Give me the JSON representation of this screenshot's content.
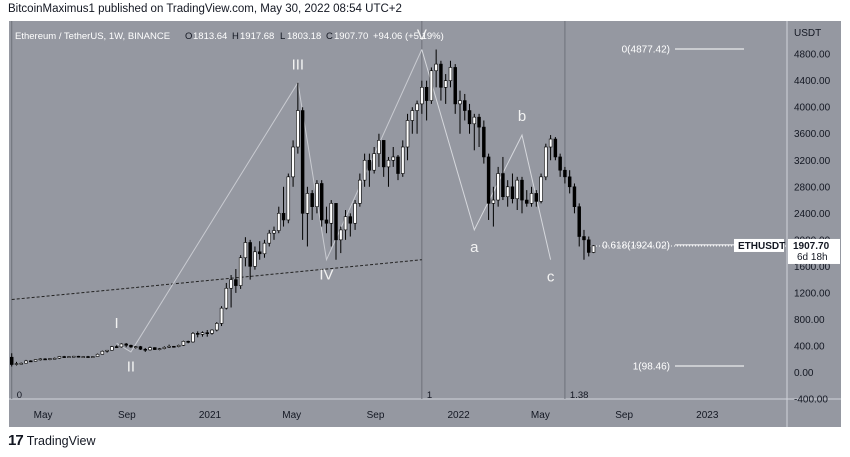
{
  "header": {
    "text": "BitcoinMaximus1 published on TradingView.com, May 30, 2022 08:54 UTC+2"
  },
  "footer": {
    "logo": "17",
    "brand": "TradingView"
  },
  "colors": {
    "plot_bg": "#9598a1",
    "candle_up": "#ffffff",
    "candle_down": "#000000",
    "fib_line": "#ffffff",
    "label_text": "#f2f2f2"
  },
  "legend": {
    "symbol": "Ethereum / TetherUS, 1W, BINANCE",
    "o_label": "O",
    "o_value": "1813.64",
    "h_label": "H",
    "h_value": "1917.68",
    "l_label": "L",
    "l_value": "1803.18",
    "c_label": "C",
    "c_value": "1907.70",
    "change": "+94.06 (+5.19%)"
  },
  "price_axis": {
    "title": "USDT"
  },
  "chart_data": {
    "type": "candlestick",
    "symbol": "Ethereum / TetherUS, 1W, BINANCE",
    "y_unit": "USDT",
    "ylim": [
      -400,
      5300
    ],
    "y_ticks": [
      -400,
      0,
      400,
      800,
      1200,
      1600,
      2000,
      2400,
      2800,
      3200,
      3600,
      4000,
      4400,
      4800
    ],
    "y_tick_labels": [
      "-400.00",
      "0.00",
      "400.00",
      "800.00",
      "1200.00",
      "1600.00",
      "2000.00",
      "2400.00",
      "2800.00",
      "3200.00",
      "3600.00",
      "4000.00",
      "4400.00",
      "4800.00"
    ],
    "x_ticks": [
      {
        "date": "2020-05-01",
        "label": "May"
      },
      {
        "date": "2020-09-01",
        "label": "Sep"
      },
      {
        "date": "2021-01-01",
        "label": "2021"
      },
      {
        "date": "2021-05-01",
        "label": "May"
      },
      {
        "date": "2021-09-01",
        "label": "Sep"
      },
      {
        "date": "2022-01-01",
        "label": "2022"
      },
      {
        "date": "2022-05-01",
        "label": "May"
      },
      {
        "date": "2022-09-01",
        "label": "Sep"
      },
      {
        "date": "2023-01-01",
        "label": "2023"
      }
    ],
    "x_range": [
      "2020-03-12",
      "2023-04-28"
    ],
    "last_price": {
      "symbol": "ETHUSDT",
      "value": 1907.7,
      "label": "1907.70",
      "countdown": "6d 18h"
    },
    "fib_levels": [
      {
        "label": "0(4877.42)",
        "value": 4877.42
      },
      {
        "label": "0.618(1924.02)",
        "value": 1924.02
      },
      {
        "label": "1(98.46)",
        "value": 98.46
      }
    ],
    "fib_time_labels": [
      {
        "label": "0",
        "date": "2020-03-16"
      },
      {
        "label": "1",
        "date": "2021-11-08"
      },
      {
        "label": "1.38",
        "date": "2022-06-06"
      }
    ],
    "wave_labels": [
      {
        "text": "I",
        "date": "2020-08-17",
        "value": 400
      },
      {
        "text": "II",
        "date": "2020-09-07",
        "value": 320
      },
      {
        "text": "III",
        "date": "2021-05-10",
        "value": 4300
      },
      {
        "text": "IV",
        "date": "2021-06-21",
        "value": 1700
      },
      {
        "text": "V",
        "date": "2021-11-08",
        "value": 4870
      },
      {
        "text": "a",
        "date": "2022-01-24",
        "value": 2150
      },
      {
        "text": "b",
        "date": "2022-04-04",
        "value": 3580
      },
      {
        "text": "c",
        "date": "2022-05-16",
        "value": 1700
      }
    ],
    "wave_path": [
      {
        "date": "2020-08-17",
        "value": 440
      },
      {
        "date": "2020-09-07",
        "value": 310
      },
      {
        "date": "2021-05-10",
        "value": 4370
      },
      {
        "date": "2021-06-21",
        "value": 1700
      },
      {
        "date": "2021-11-08",
        "value": 4870
      }
    ],
    "abc_path": [
      {
        "date": "2021-11-08",
        "value": 4870
      },
      {
        "date": "2022-01-24",
        "value": 2150
      },
      {
        "date": "2022-04-04",
        "value": 3580
      },
      {
        "date": "2022-05-16",
        "value": 1700
      }
    ],
    "trendline": [
      {
        "date": "2020-03-16",
        "value": 1100
      },
      {
        "date": "2021-11-08",
        "value": 1700
      }
    ],
    "candles": [
      {
        "o": 230,
        "h": 290,
        "l": 90,
        "c": 120
      },
      {
        "o": 120,
        "h": 160,
        "l": 105,
        "c": 135
      },
      {
        "o": 135,
        "h": 150,
        "l": 120,
        "c": 140
      },
      {
        "o": 140,
        "h": 190,
        "l": 135,
        "c": 175
      },
      {
        "o": 175,
        "h": 185,
        "l": 160,
        "c": 170
      },
      {
        "o": 170,
        "h": 200,
        "l": 165,
        "c": 195
      },
      {
        "o": 195,
        "h": 215,
        "l": 180,
        "c": 205
      },
      {
        "o": 205,
        "h": 215,
        "l": 190,
        "c": 195
      },
      {
        "o": 195,
        "h": 215,
        "l": 185,
        "c": 210
      },
      {
        "o": 210,
        "h": 225,
        "l": 200,
        "c": 215
      },
      {
        "o": 215,
        "h": 245,
        "l": 205,
        "c": 240
      },
      {
        "o": 240,
        "h": 250,
        "l": 220,
        "c": 230
      },
      {
        "o": 230,
        "h": 245,
        "l": 225,
        "c": 240
      },
      {
        "o": 240,
        "h": 250,
        "l": 230,
        "c": 245
      },
      {
        "o": 245,
        "h": 250,
        "l": 225,
        "c": 235
      },
      {
        "o": 235,
        "h": 245,
        "l": 225,
        "c": 240
      },
      {
        "o": 240,
        "h": 250,
        "l": 225,
        "c": 232
      },
      {
        "o": 232,
        "h": 245,
        "l": 225,
        "c": 240
      },
      {
        "o": 240,
        "h": 285,
        "l": 235,
        "c": 275
      },
      {
        "o": 275,
        "h": 330,
        "l": 270,
        "c": 320
      },
      {
        "o": 320,
        "h": 340,
        "l": 300,
        "c": 335
      },
      {
        "o": 335,
        "h": 400,
        "l": 330,
        "c": 390
      },
      {
        "o": 390,
        "h": 410,
        "l": 370,
        "c": 385
      },
      {
        "o": 385,
        "h": 440,
        "l": 375,
        "c": 430
      },
      {
        "o": 430,
        "h": 445,
        "l": 380,
        "c": 410
      },
      {
        "o": 410,
        "h": 420,
        "l": 370,
        "c": 385
      },
      {
        "o": 385,
        "h": 400,
        "l": 360,
        "c": 390
      },
      {
        "o": 390,
        "h": 400,
        "l": 340,
        "c": 350
      },
      {
        "o": 350,
        "h": 370,
        "l": 310,
        "c": 340
      },
      {
        "o": 340,
        "h": 390,
        "l": 330,
        "c": 375
      },
      {
        "o": 375,
        "h": 380,
        "l": 340,
        "c": 345
      },
      {
        "o": 345,
        "h": 370,
        "l": 335,
        "c": 360
      },
      {
        "o": 360,
        "h": 395,
        "l": 350,
        "c": 380
      },
      {
        "o": 380,
        "h": 420,
        "l": 370,
        "c": 395
      },
      {
        "o": 395,
        "h": 400,
        "l": 375,
        "c": 390
      },
      {
        "o": 390,
        "h": 420,
        "l": 380,
        "c": 410
      },
      {
        "o": 410,
        "h": 480,
        "l": 400,
        "c": 470
      },
      {
        "o": 470,
        "h": 480,
        "l": 440,
        "c": 460
      },
      {
        "o": 460,
        "h": 610,
        "l": 450,
        "c": 590
      },
      {
        "o": 590,
        "h": 620,
        "l": 530,
        "c": 575
      },
      {
        "o": 575,
        "h": 620,
        "l": 540,
        "c": 600
      },
      {
        "o": 600,
        "h": 640,
        "l": 540,
        "c": 590
      },
      {
        "o": 590,
        "h": 650,
        "l": 570,
        "c": 640
      },
      {
        "o": 640,
        "h": 760,
        "l": 620,
        "c": 740
      },
      {
        "o": 740,
        "h": 1000,
        "l": 700,
        "c": 970
      },
      {
        "o": 970,
        "h": 1350,
        "l": 950,
        "c": 1270
      },
      {
        "o": 1270,
        "h": 1470,
        "l": 980,
        "c": 1400
      },
      {
        "o": 1400,
        "h": 1560,
        "l": 1200,
        "c": 1310
      },
      {
        "o": 1310,
        "h": 1770,
        "l": 1260,
        "c": 1730
      },
      {
        "o": 1730,
        "h": 2040,
        "l": 1600,
        "c": 1960
      },
      {
        "o": 1960,
        "h": 2000,
        "l": 1400,
        "c": 1600
      },
      {
        "o": 1600,
        "h": 1900,
        "l": 1550,
        "c": 1820
      },
      {
        "o": 1820,
        "h": 1980,
        "l": 1700,
        "c": 1790
      },
      {
        "o": 1790,
        "h": 2000,
        "l": 1730,
        "c": 1950
      },
      {
        "o": 1950,
        "h": 2150,
        "l": 1900,
        "c": 2100
      },
      {
        "o": 2100,
        "h": 2200,
        "l": 2000,
        "c": 2140
      },
      {
        "o": 2140,
        "h": 2500,
        "l": 2100,
        "c": 2400
      },
      {
        "o": 2400,
        "h": 2800,
        "l": 2200,
        "c": 2300
      },
      {
        "o": 2300,
        "h": 3000,
        "l": 2250,
        "c": 2950
      },
      {
        "o": 2950,
        "h": 3500,
        "l": 2800,
        "c": 3400
      },
      {
        "o": 3400,
        "h": 4370,
        "l": 3300,
        "c": 3950
      },
      {
        "o": 3950,
        "h": 4000,
        "l": 2000,
        "c": 2400
      },
      {
        "o": 2400,
        "h": 2800,
        "l": 1900,
        "c": 2700
      },
      {
        "o": 2700,
        "h": 2750,
        "l": 2300,
        "c": 2500
      },
      {
        "o": 2500,
        "h": 2900,
        "l": 2400,
        "c": 2850
      },
      {
        "o": 2850,
        "h": 2900,
        "l": 2200,
        "c": 2300
      },
      {
        "o": 2300,
        "h": 2500,
        "l": 2100,
        "c": 2250
      },
      {
        "o": 2250,
        "h": 2600,
        "l": 1900,
        "c": 2550
      },
      {
        "o": 2550,
        "h": 2550,
        "l": 1700,
        "c": 2000
      },
      {
        "o": 2000,
        "h": 2200,
        "l": 1800,
        "c": 2150
      },
      {
        "o": 2150,
        "h": 2450,
        "l": 2000,
        "c": 2350
      },
      {
        "o": 2350,
        "h": 2400,
        "l": 2050,
        "c": 2250
      },
      {
        "o": 2250,
        "h": 2600,
        "l": 2150,
        "c": 2550
      },
      {
        "o": 2550,
        "h": 3000,
        "l": 2500,
        "c": 2900
      },
      {
        "o": 2900,
        "h": 3300,
        "l": 2800,
        "c": 3200
      },
      {
        "o": 3200,
        "h": 3300,
        "l": 2800,
        "c": 3050
      },
      {
        "o": 3050,
        "h": 3400,
        "l": 3000,
        "c": 3300
      },
      {
        "o": 3300,
        "h": 3600,
        "l": 3100,
        "c": 3500
      },
      {
        "o": 3500,
        "h": 3500,
        "l": 2950,
        "c": 3100
      },
      {
        "o": 3100,
        "h": 3250,
        "l": 2800,
        "c": 3200
      },
      {
        "o": 3200,
        "h": 3400,
        "l": 3100,
        "c": 3250
      },
      {
        "o": 3250,
        "h": 3280,
        "l": 2900,
        "c": 3000
      },
      {
        "o": 3000,
        "h": 3500,
        "l": 2950,
        "c": 3400
      },
      {
        "o": 3400,
        "h": 3900,
        "l": 3200,
        "c": 3800
      },
      {
        "o": 3800,
        "h": 4000,
        "l": 3600,
        "c": 3950
      },
      {
        "o": 3950,
        "h": 4100,
        "l": 3600,
        "c": 4050
      },
      {
        "o": 4050,
        "h": 4400,
        "l": 3900,
        "c": 4300
      },
      {
        "o": 4300,
        "h": 4400,
        "l": 3800,
        "c": 4100
      },
      {
        "o": 4100,
        "h": 4600,
        "l": 4050,
        "c": 4550
      },
      {
        "o": 4550,
        "h": 4870,
        "l": 4300,
        "c": 4650
      },
      {
        "o": 4650,
        "h": 4700,
        "l": 4100,
        "c": 4300
      },
      {
        "o": 4300,
        "h": 4500,
        "l": 4050,
        "c": 4400
      },
      {
        "o": 4400,
        "h": 4700,
        "l": 4300,
        "c": 4600
      },
      {
        "o": 4600,
        "h": 4650,
        "l": 3900,
        "c": 4050
      },
      {
        "o": 4050,
        "h": 4250,
        "l": 3600,
        "c": 4100
      },
      {
        "o": 4100,
        "h": 4200,
        "l": 3800,
        "c": 3950
      },
      {
        "o": 3950,
        "h": 4050,
        "l": 3600,
        "c": 3750
      },
      {
        "o": 3750,
        "h": 3900,
        "l": 3350,
        "c": 3850
      },
      {
        "o": 3850,
        "h": 3900,
        "l": 3400,
        "c": 3700
      },
      {
        "o": 3700,
        "h": 3800,
        "l": 3150,
        "c": 3250
      },
      {
        "o": 3250,
        "h": 3300,
        "l": 2300,
        "c": 2550
      },
      {
        "o": 2550,
        "h": 2800,
        "l": 2200,
        "c": 2600
      },
      {
        "o": 2600,
        "h": 3100,
        "l": 2500,
        "c": 3000
      },
      {
        "o": 3000,
        "h": 3250,
        "l": 2600,
        "c": 2650
      },
      {
        "o": 2650,
        "h": 2900,
        "l": 2500,
        "c": 2800
      },
      {
        "o": 2800,
        "h": 3000,
        "l": 2550,
        "c": 2620
      },
      {
        "o": 2620,
        "h": 2950,
        "l": 2450,
        "c": 2900
      },
      {
        "o": 2900,
        "h": 2950,
        "l": 2400,
        "c": 2600
      },
      {
        "o": 2600,
        "h": 2750,
        "l": 2500,
        "c": 2550
      },
      {
        "o": 2550,
        "h": 2800,
        "l": 2500,
        "c": 2700
      },
      {
        "o": 2700,
        "h": 2750,
        "l": 2500,
        "c": 2580
      },
      {
        "o": 2580,
        "h": 3000,
        "l": 2550,
        "c": 2950
      },
      {
        "o": 2950,
        "h": 3450,
        "l": 2900,
        "c": 3400
      },
      {
        "o": 3400,
        "h": 3580,
        "l": 3200,
        "c": 3520
      },
      {
        "o": 3520,
        "h": 3550,
        "l": 3200,
        "c": 3250
      },
      {
        "o": 3250,
        "h": 3300,
        "l": 2950,
        "c": 3050
      },
      {
        "o": 3050,
        "h": 3100,
        "l": 2850,
        "c": 2950
      },
      {
        "o": 2950,
        "h": 3050,
        "l": 2700,
        "c": 2800
      },
      {
        "o": 2800,
        "h": 2850,
        "l": 2400,
        "c": 2500
      },
      {
        "o": 2500,
        "h": 2550,
        "l": 1900,
        "c": 2050
      },
      {
        "o": 2050,
        "h": 2150,
        "l": 1700,
        "c": 2000
      },
      {
        "o": 2000,
        "h": 2050,
        "l": 1750,
        "c": 1810
      },
      {
        "o": 1810,
        "h": 1920,
        "l": 1800,
        "c": 1910
      }
    ]
  }
}
